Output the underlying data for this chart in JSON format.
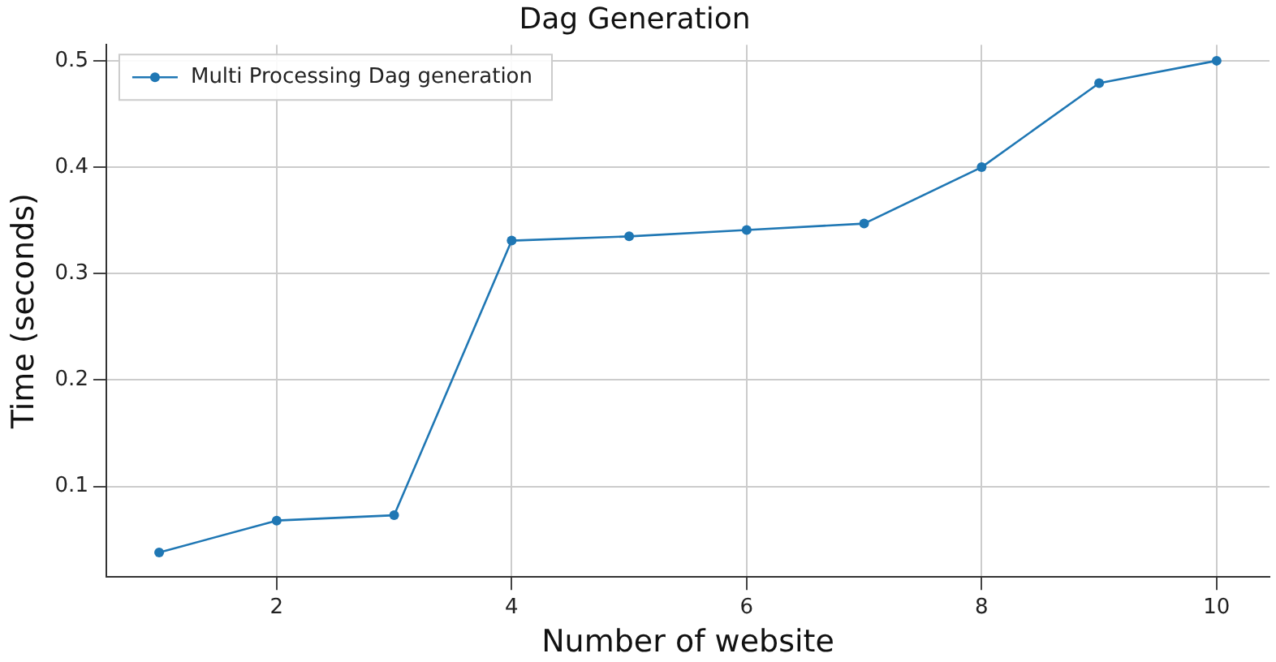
{
  "chart_data": {
    "type": "line",
    "title": "Dag Generation",
    "xlabel": "Number of website",
    "ylabel": "Time (seconds)",
    "x": [
      1,
      2,
      3,
      4,
      5,
      6,
      7,
      8,
      9,
      10
    ],
    "series": [
      {
        "name": "Multi Processing Dag generation",
        "color": "#1f77b4",
        "values": [
          0.038,
          0.068,
          0.073,
          0.331,
          0.335,
          0.341,
          0.347,
          0.4,
          0.479,
          0.5
        ]
      }
    ],
    "xlim": [
      0.55,
      10.45
    ],
    "xticks": [
      2,
      4,
      6,
      8,
      10
    ],
    "ylim": [
      0.015,
      0.515
    ],
    "yticks": [
      0.1,
      0.2,
      0.3,
      0.4,
      0.5
    ],
    "grid": true,
    "legend": "top left",
    "marker": "circle",
    "line_style": "solid"
  }
}
